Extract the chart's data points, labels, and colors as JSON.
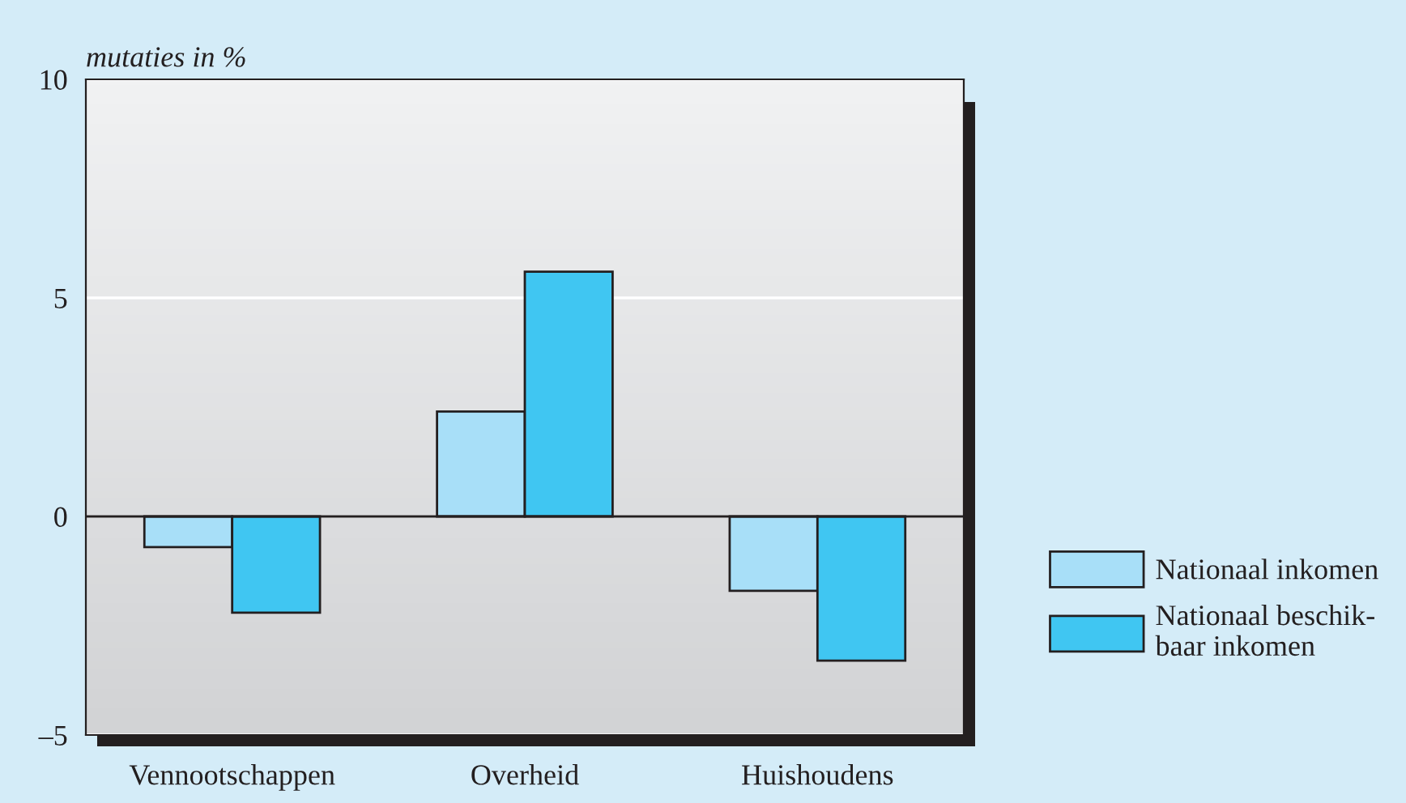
{
  "chart_data": {
    "type": "bar",
    "ylabel": "mutaties in %",
    "categories": [
      "Vennootschappen",
      "Overheid",
      "Huishoudens"
    ],
    "series": [
      {
        "name": "Nationaal inkomen",
        "color": "#a8dff8",
        "values": [
          -0.7,
          2.4,
          -1.7
        ]
      },
      {
        "name": "Nationaal beschik-\nbaar inkomen",
        "color": "#40c6f2",
        "values": [
          -2.2,
          5.6,
          -3.3
        ]
      }
    ],
    "ylim": [
      -5,
      10
    ],
    "yticks": [
      {
        "value": -5,
        "label": "–5"
      },
      0,
      5,
      10
    ],
    "grid": "y",
    "legend": "bottom right"
  }
}
